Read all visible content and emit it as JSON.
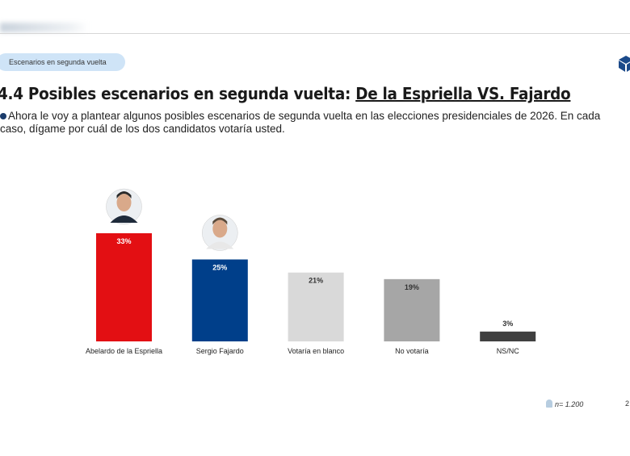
{
  "header": {
    "section_pill": "Escenarios en segunda vuelta"
  },
  "title": {
    "prefix": "4.4 Posibles escenarios en segunda vuelta: ",
    "underlined": "De la Espriella VS. Fajardo"
  },
  "question": "Ahora le voy a plantear algunos posibles escenarios de segunda vuelta en las elecciones presidenciales de 2026. En cada caso, dígame por cuál de los dos candidatos votaría usted.",
  "footer": {
    "sample": "n= 1.200",
    "page": "2"
  },
  "chart_data": {
    "type": "bar",
    "categories": [
      "Abelardo de la Espriella",
      "Sergio Fajardo",
      "Votaría en blanco",
      "No votaría",
      "NS/NC"
    ],
    "values": [
      33,
      25,
      21,
      19,
      3
    ],
    "data_labels": [
      "33%",
      "25%",
      "21%",
      "19%",
      "3%"
    ],
    "colors": [
      "#e30f13",
      "#003f8a",
      "#d9d9d9",
      "#a6a6a6",
      "#404040"
    ],
    "label_colors": [
      "#ffffff",
      "#ffffff",
      "#333333",
      "#333333",
      "#333333"
    ],
    "portraits": [
      true,
      true,
      false,
      false,
      false
    ],
    "title": "",
    "xlabel": "",
    "ylabel": "",
    "ylim": [
      0,
      33
    ],
    "grid": false,
    "legend": "none"
  }
}
